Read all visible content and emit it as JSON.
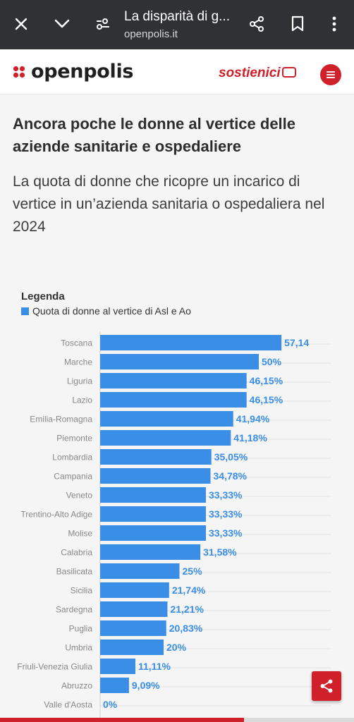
{
  "browser": {
    "tab_title": "La disparità di g...",
    "url": "openpolis.it",
    "icons": [
      "close-icon",
      "chevron-down-icon",
      "site-settings-icon",
      "share-icon",
      "bookmark-icon",
      "more-vert-icon"
    ]
  },
  "site": {
    "logo_text": "openpolis",
    "support_text": "sostienici",
    "colors": {
      "brand_red": "#d0202a",
      "bar_blue": "#3a8ee6"
    }
  },
  "article": {
    "headline": "Ancora poche le donne al vertice delle aziende sanitarie e ospedaliere",
    "subtitle": "La quota di donne che ricopre un incarico di vertice in un’azienda sanitaria o ospedaliera nel 2024"
  },
  "legend": {
    "title": "Legenda",
    "item": "Quota di donne al vertice di Asl e Ao"
  },
  "chart_data": {
    "type": "bar",
    "orientation": "horizontal",
    "categories": [
      "Toscana",
      "Marche",
      "Liguria",
      "Lazio",
      "Emilia-Romagna",
      "Piemonte",
      "Lombardia",
      "Campania",
      "Veneto",
      "Trentino-Alto Adige",
      "Molise",
      "Calabria",
      "Basilicata",
      "Sicilia",
      "Sardegna",
      "Puglia",
      "Umbria",
      "Friuli-Venezia Giulia",
      "Abruzzo",
      "Valle d'Aosta"
    ],
    "values": [
      57.14,
      50,
      46.15,
      46.15,
      41.94,
      41.18,
      35.05,
      34.78,
      33.33,
      33.33,
      33.33,
      31.58,
      25,
      21.74,
      21.21,
      20.83,
      20,
      11.11,
      9.09,
      0
    ],
    "labels": [
      "57,14",
      "50%",
      "46,15%",
      "46,15%",
      "41,94%",
      "41,18%",
      "35,05%",
      "34,78%",
      "33,33%",
      "33,33%",
      "33,33%",
      "31,58%",
      "25%",
      "21,74%",
      "21,21%",
      "20,83%",
      "20%",
      "11,11%",
      "9,09%",
      "0%"
    ],
    "series": [
      {
        "name": "Quota di donne al vertice di Asl e Ao",
        "values": [
          57.14,
          50,
          46.15,
          46.15,
          41.94,
          41.18,
          35.05,
          34.78,
          33.33,
          33.33,
          33.33,
          31.58,
          25,
          21.74,
          21.21,
          20.83,
          20,
          11.11,
          9.09,
          0
        ]
      }
    ],
    "title": "",
    "xlabel": "",
    "ylabel": "",
    "xlim": [
      0,
      60
    ],
    "grid": true,
    "legend_position": "top-left"
  },
  "reading_progress": 0.69
}
